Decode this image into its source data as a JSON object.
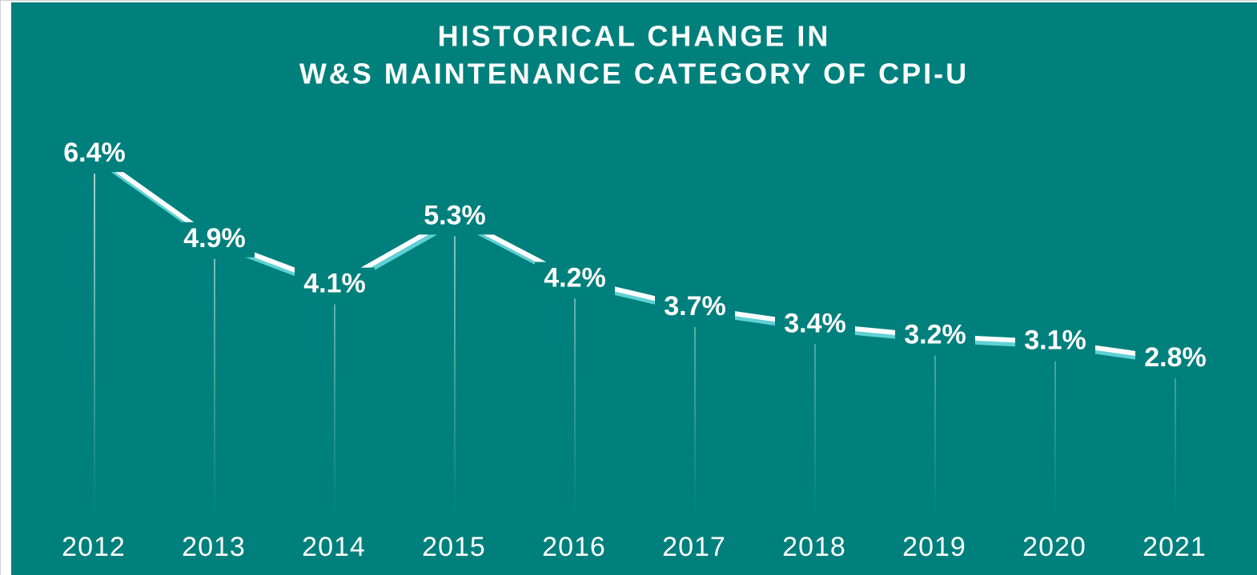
{
  "chart_data": {
    "type": "line",
    "title": [
      "HISTORICAL CHANGE IN",
      "W&S MAINTENANCE CATEGORY OF CPI-U"
    ],
    "categories": [
      "2012",
      "2013",
      "2014",
      "2015",
      "2016",
      "2017",
      "2018",
      "2019",
      "2020",
      "2021"
    ],
    "values": [
      6.4,
      4.9,
      4.1,
      5.3,
      4.2,
      3.7,
      3.4,
      3.2,
      3.1,
      2.8
    ],
    "value_labels": [
      "6.4%",
      "4.9%",
      "4.1%",
      "5.3%",
      "4.2%",
      "3.7%",
      "3.4%",
      "3.2%",
      "3.1%",
      "2.8%"
    ],
    "ylim": [
      0,
      7.5
    ],
    "color": "#ffffff",
    "shadow_color": "#5fd0d4",
    "background": "#00807c"
  }
}
